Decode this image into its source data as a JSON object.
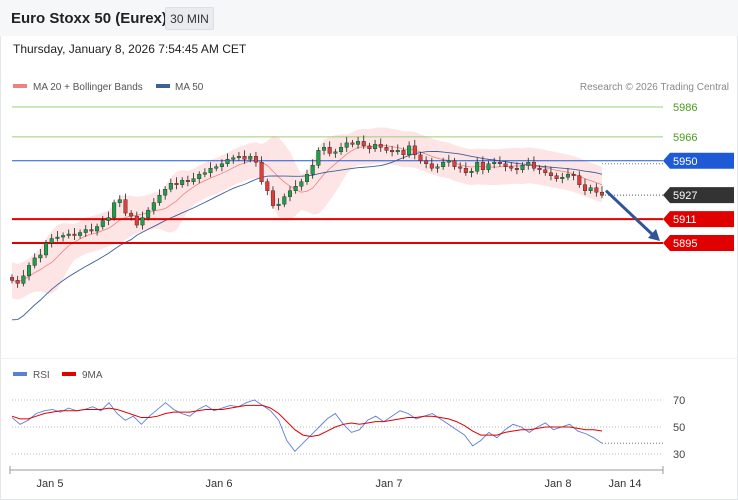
{
  "header": {
    "title": "Euro Stoxx 50 (Eurex)",
    "timeframe": "30 MIN",
    "datetime": "Thursday, January 8, 2026 7:54:45 AM CET"
  },
  "legend": {
    "ma20": {
      "label": "MA 20 + Bollinger Bands",
      "color": "#f08080"
    },
    "ma50": {
      "label": "MA 50",
      "color": "#3d5f9a"
    },
    "credit": "Research © 2026 Trading Central"
  },
  "rsi_legend": {
    "rsi": {
      "label": "RSI",
      "color": "#5b7fd6"
    },
    "ma9": {
      "label": "9MA",
      "color": "#e00000"
    }
  },
  "chart_data": [
    {
      "type": "line",
      "title": "Euro Stoxx 50 (Eurex)",
      "ylim": [
        5838,
        5994
      ],
      "x_labels": [
        "Jan 5",
        "Jan 6",
        "Jan 7",
        "Jan 8",
        "Jan 14"
      ],
      "price_series": {
        "name": "",
        "values": [
          5870,
          5868,
          5873,
          5880,
          5885,
          5887,
          5895,
          5898,
          5899,
          5900,
          5901,
          5900,
          5902,
          5904,
          5903,
          5906,
          5910,
          5912,
          5922,
          5924,
          5915,
          5913,
          5907,
          5912,
          5917,
          5922,
          5927,
          5931,
          5935,
          5934,
          5937,
          5936,
          5938,
          5941,
          5942,
          5945,
          5946,
          5948,
          5951,
          5952,
          5953,
          5951,
          5953,
          5949,
          5936,
          5930,
          5920,
          5921,
          5926,
          5930,
          5933,
          5936,
          5941,
          5947,
          5957,
          5959,
          5955,
          5956,
          5959,
          5962,
          5961,
          5963,
          5960,
          5958,
          5961,
          5959,
          5957,
          5956,
          5957,
          5954,
          5960,
          5954,
          5950,
          5948,
          5945,
          5946,
          5949,
          5950,
          5946,
          5945,
          5942,
          5943,
          5949,
          5944,
          5948,
          5949,
          5948,
          5946,
          5945,
          5944,
          5947,
          5949,
          5945,
          5944,
          5942,
          5940,
          5938,
          5939,
          5941,
          5940,
          5934,
          5930,
          5932,
          5929,
          5927
        ]
      },
      "levels": [
        {
          "value": 5986,
          "label": "5986",
          "color": "#4c9a1c",
          "style": "resistance"
        },
        {
          "value": 5966,
          "label": "5966",
          "color": "#4c9a1c",
          "style": "resistance"
        },
        {
          "value": 5950,
          "label": "5950",
          "color": "#1e5ad6",
          "style": "pivot"
        },
        {
          "value": 5927,
          "label": "5927",
          "color": "#333333",
          "style": "last"
        },
        {
          "value": 5911,
          "label": "5911",
          "color": "#e00000",
          "style": "support"
        },
        {
          "value": 5895,
          "label": "5895",
          "color": "#e00000",
          "style": "support"
        }
      ],
      "forecast_arrow": {
        "from": 5932,
        "to": 5895,
        "color": "#2f5597"
      }
    },
    {
      "type": "line",
      "title": "",
      "ylim": [
        22,
        78
      ],
      "y_ticks": [
        "70",
        "50",
        "30"
      ],
      "series": [
        {
          "name": "RSI",
          "values": [
            57,
            52,
            55,
            60,
            62,
            63,
            61,
            64,
            62,
            63,
            65,
            62,
            68,
            60,
            55,
            58,
            52,
            58,
            63,
            68,
            63,
            60,
            58,
            63,
            66,
            62,
            64,
            66,
            65,
            68,
            70,
            66,
            62,
            55,
            40,
            32,
            38,
            44,
            50,
            56,
            60,
            52,
            46,
            48,
            55,
            58,
            54,
            58,
            62,
            60,
            56,
            58,
            60,
            56,
            52,
            48,
            44,
            36,
            40,
            46,
            42,
            48,
            52,
            50,
            46,
            50,
            53,
            48,
            50,
            52,
            47,
            45,
            42,
            38
          ]
        },
        {
          "name": "9MA",
          "values": [
            58,
            56,
            56,
            58,
            60,
            61,
            62,
            62,
            62,
            63,
            63,
            63,
            64,
            63,
            61,
            59,
            57,
            57,
            58,
            60,
            61,
            61,
            61,
            62,
            63,
            63,
            63,
            64,
            65,
            66,
            66,
            66,
            64,
            60,
            54,
            48,
            44,
            43,
            44,
            47,
            50,
            52,
            53,
            52,
            53,
            54,
            54,
            55,
            56,
            57,
            57,
            58,
            58,
            57,
            56,
            54,
            51,
            47,
            44,
            44,
            44,
            46,
            47,
            48,
            48,
            49,
            50,
            50,
            50,
            50,
            49,
            48,
            48,
            47
          ]
        }
      ]
    }
  ]
}
